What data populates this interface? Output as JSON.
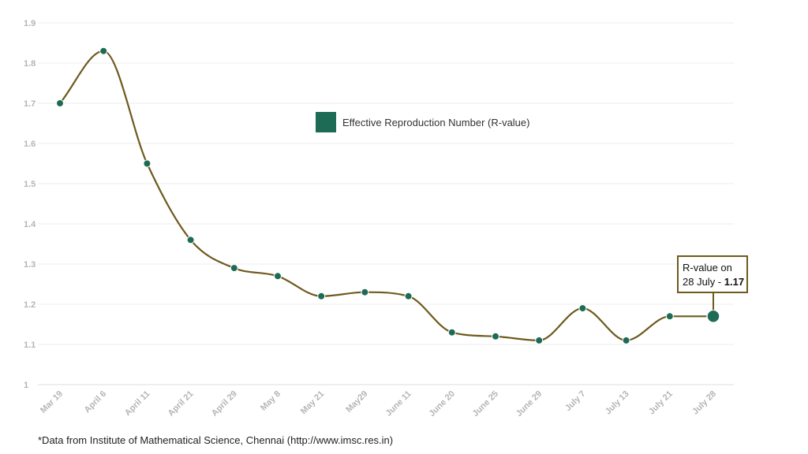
{
  "chart_data": {
    "type": "line",
    "categories": [
      "Mar 19",
      "April 6",
      "April 11",
      "April 21",
      "April 29",
      "May 8",
      "May 21",
      "May29",
      "June 11",
      "June 20",
      "June 25",
      "June 29",
      "July 7",
      "July 13",
      "July 21",
      "July 28"
    ],
    "series": [
      {
        "name": "Effective Reproduction Number (R-value)",
        "values": [
          1.7,
          1.83,
          1.55,
          1.36,
          1.29,
          1.27,
          1.22,
          1.23,
          1.22,
          1.13,
          1.12,
          1.11,
          1.19,
          1.11,
          1.17,
          1.17
        ]
      }
    ],
    "ylim": [
      1,
      1.9
    ],
    "yticks": [
      "1",
      "1.1",
      "1.2",
      "1.3",
      "1.4",
      "1.5",
      "1.6",
      "1.7",
      "1.8",
      "1.9"
    ],
    "grid": true,
    "legend_position": "top-center",
    "callout": {
      "line1": "R-value on",
      "line2_prefix": "28 July - ",
      "line2_value": "1.17"
    }
  },
  "colors": {
    "line": "#6e5a1e",
    "marker": "#1e6b55",
    "grid": "#ececec",
    "axis": "#dddddd"
  },
  "footnote": "*Data from Institute of Mathematical Science, Chennai (http://www.imsc.res.in)"
}
